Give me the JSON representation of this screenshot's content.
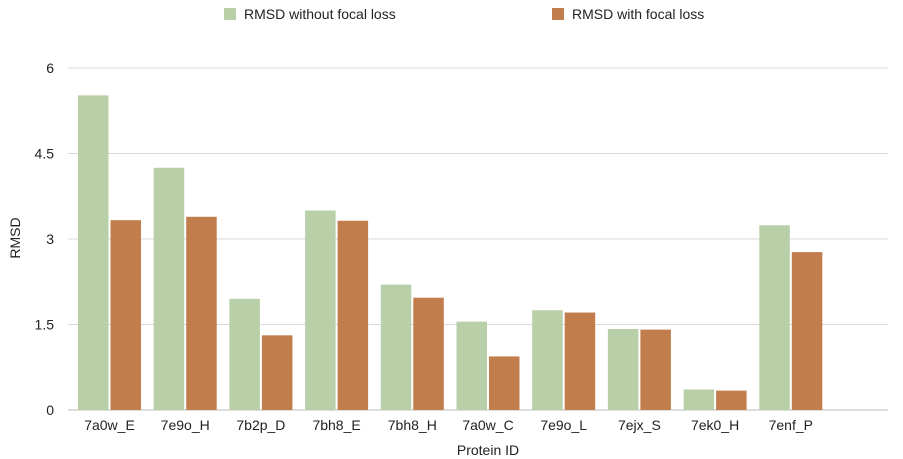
{
  "chart_data": {
    "type": "bar",
    "title": "",
    "xlabel": "Protein ID",
    "ylabel": "RMSD",
    "ylim": [
      0,
      6
    ],
    "yticks": [
      "0",
      "1.5",
      "3",
      "4.5",
      "6"
    ],
    "grid": true,
    "legend_position": "top",
    "categories": [
      "7a0w_E",
      "7e9o_H",
      "7b2p_D",
      "7bh8_E",
      "7bh8_H",
      "7a0w_C",
      "7e9o_L",
      "7ejx_S",
      "7ek0_H",
      "7enf_P"
    ],
    "series": [
      {
        "name": "RMSD without focal loss",
        "color": "#b8cfa8",
        "values": [
          5.52,
          4.25,
          1.95,
          3.5,
          2.2,
          1.55,
          1.75,
          1.42,
          0.36,
          3.24
        ]
      },
      {
        "name": "RMSD with focal loss",
        "color": "#c17d4c",
        "values": [
          3.33,
          3.39,
          1.31,
          3.32,
          1.97,
          0.94,
          1.71,
          1.41,
          0.34,
          2.77
        ]
      }
    ]
  }
}
